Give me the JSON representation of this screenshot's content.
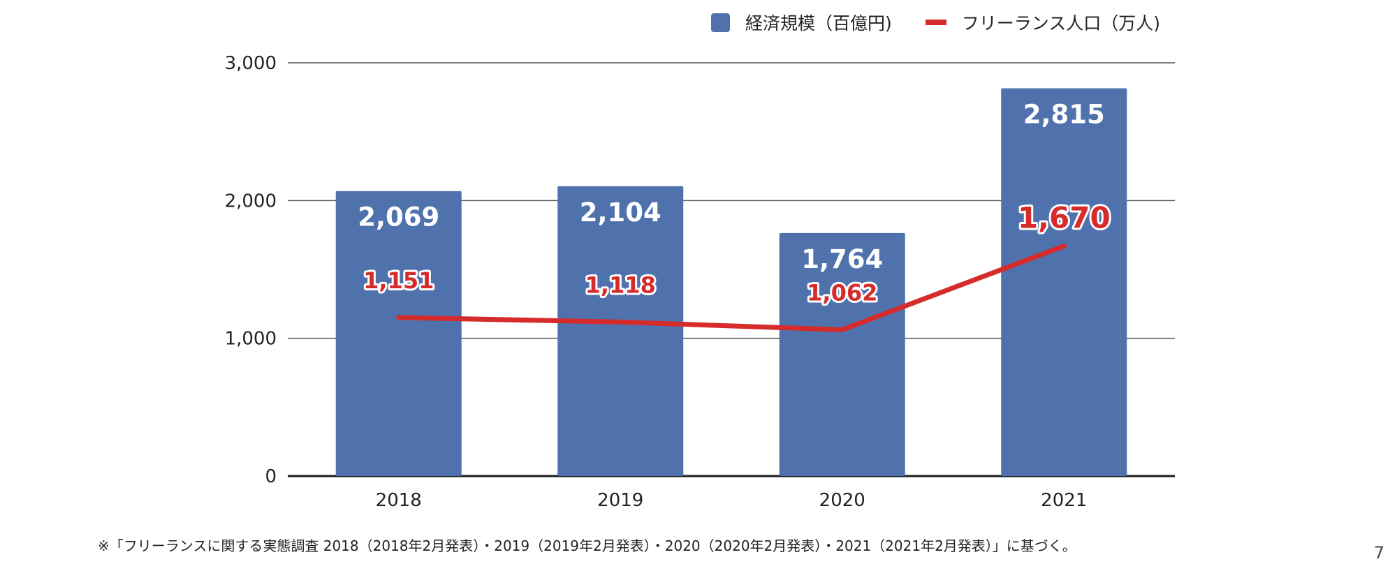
{
  "chart_data": {
    "type": "bar",
    "categories": [
      "2018",
      "2019",
      "2020",
      "2021"
    ],
    "ylim": [
      0,
      3000
    ],
    "yticks": [
      0,
      1000,
      2000,
      3000
    ],
    "ytick_labels": [
      "0",
      "1,000",
      "2,000",
      "3,000"
    ],
    "grid": true,
    "legend_position": "top-right",
    "series": [
      {
        "name": "経済規模（百億円)",
        "type": "bar",
        "values": [
          2069,
          2104,
          1764,
          2815
        ],
        "labels": [
          "2,069",
          "2,104",
          "1,764",
          "2,815"
        ],
        "color": "#4f72ad"
      },
      {
        "name": "フリーランス人口（万人)",
        "type": "line",
        "values": [
          1151,
          1118,
          1062,
          1670
        ],
        "labels": [
          "1,151",
          "1,118",
          "1,062",
          "1,670"
        ],
        "color": "#d62b2b"
      }
    ]
  },
  "legend": {
    "bar_label": "経済規模（百億円)",
    "line_label": "フリーランス人口（万人)"
  },
  "footnote": "※「フリーランスに関する実態調査 2018（2018年2月発表）・2019（2019年2月発表）・2020（2020年2月発表）・2021（2021年2月発表）」に基づく。",
  "page_number": "7"
}
